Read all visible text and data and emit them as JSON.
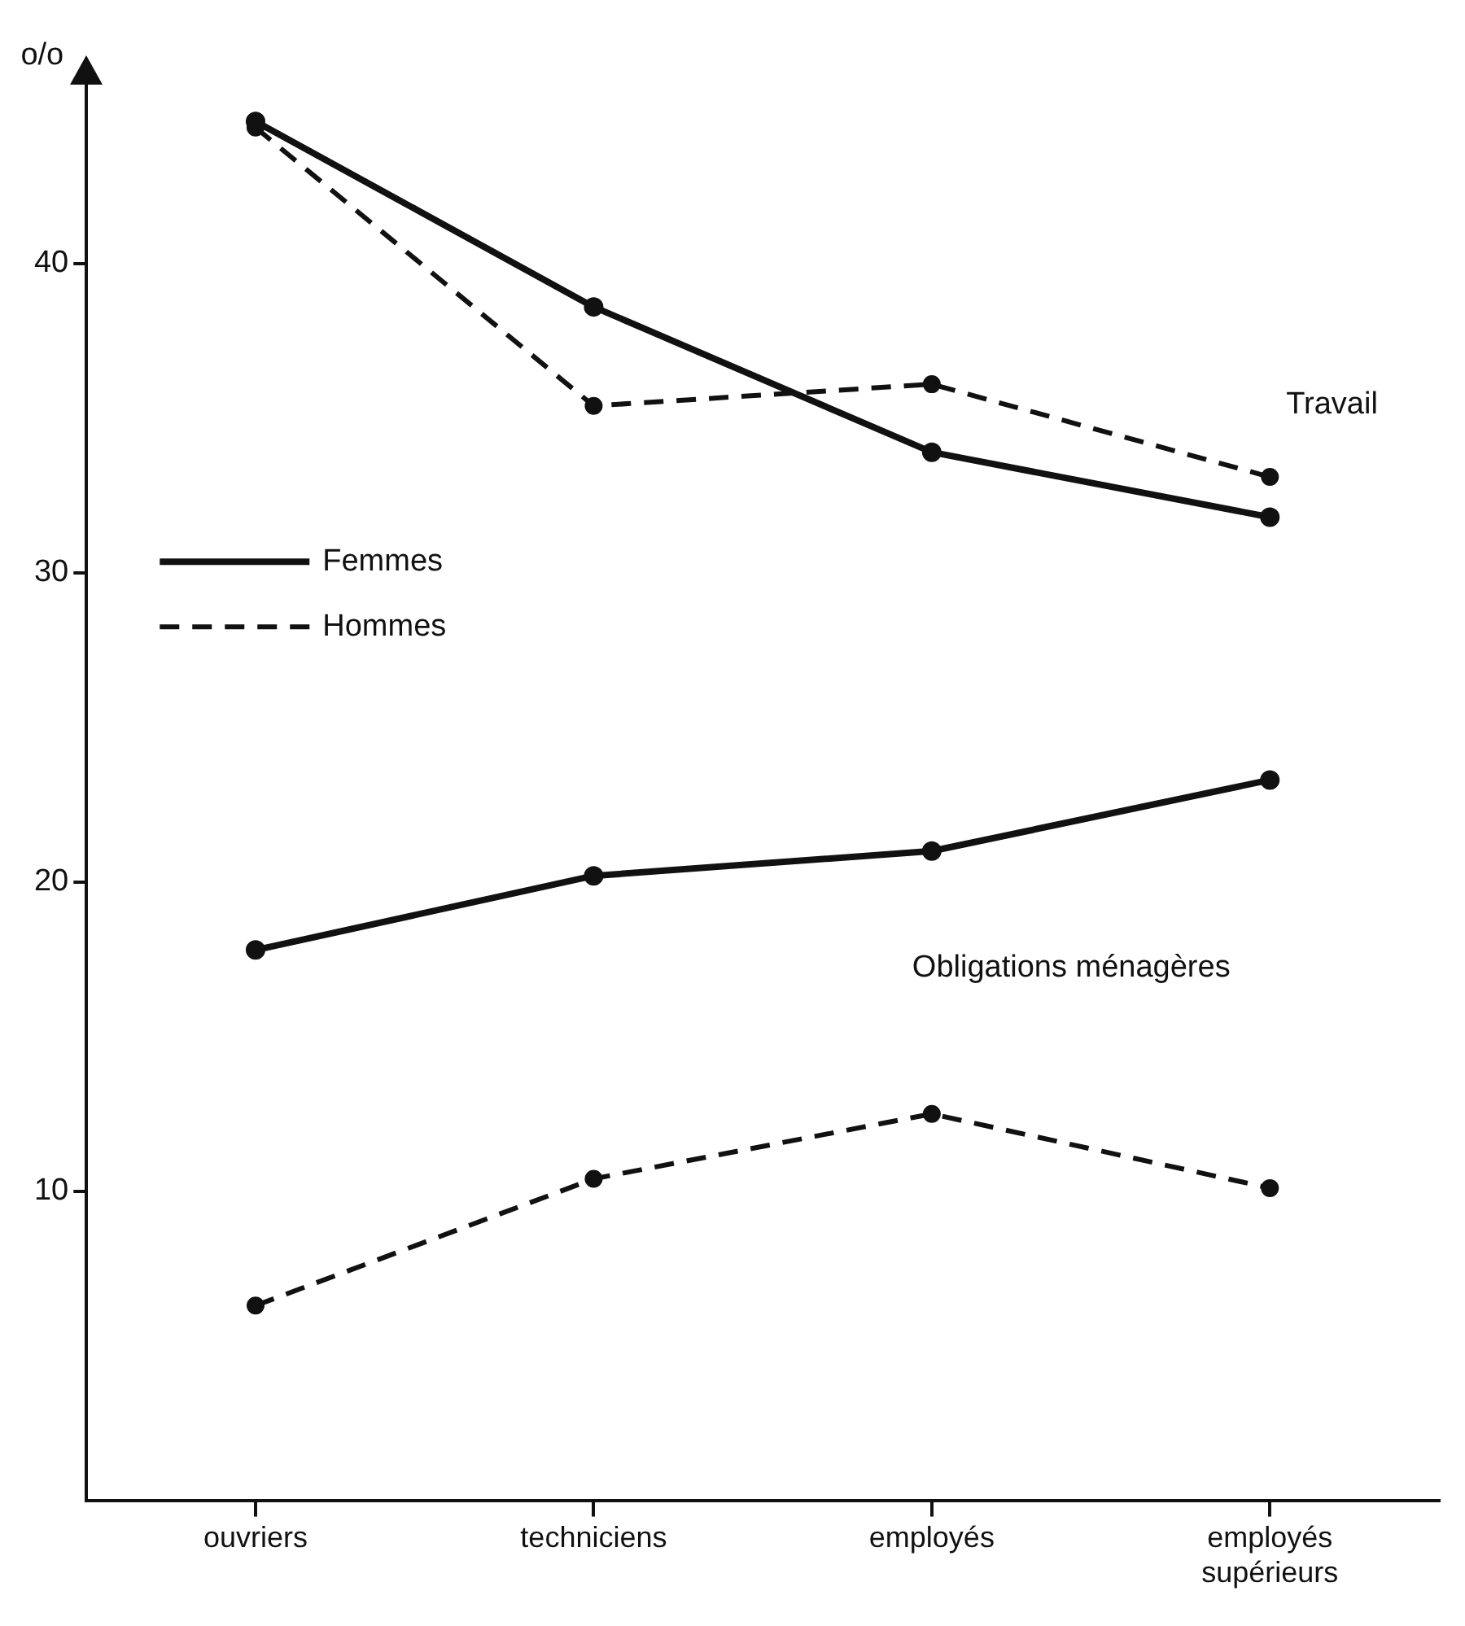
{
  "chart_data": {
    "type": "line",
    "ylabel": "o/o",
    "categories": [
      "ouvriers",
      "techniciens",
      "employés",
      "employés supérieurs"
    ],
    "series": [
      {
        "name": "Femmes",
        "color": "#111111",
        "line_style": "solid",
        "values": [
          44.6,
          38.6,
          33.9,
          31.8
        ]
      },
      {
        "name": "Hommes",
        "color": "#111111",
        "line_style": "dashed",
        "values": [
          44.4,
          35.4,
          36.1,
          33.1
        ]
      },
      {
        "color": "#111111",
        "line_style": "solid",
        "values": [
          17.8,
          20.2,
          21.0,
          23.3
        ]
      },
      {
        "color": "#111111",
        "line_style": "dashed",
        "values": [
          6.3,
          10.4,
          12.5,
          10.1
        ]
      }
    ],
    "ylim": [
      0,
      46
    ],
    "yticks": [
      10,
      20,
      30,
      40
    ],
    "grid": false,
    "legend": "left",
    "marker": "circle",
    "annotations": [
      "Travail",
      "Obligations ménagères"
    ]
  }
}
